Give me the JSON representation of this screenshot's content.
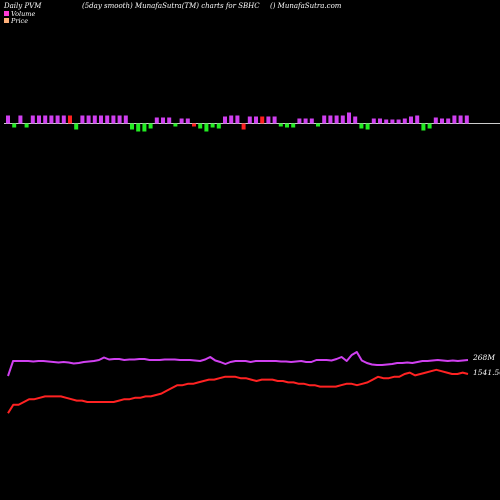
{
  "header": {
    "left": "Daily PVM",
    "center": "(5day smooth) MunafaSutra(TM) charts for SBHC",
    "right": "() MunafaSutra.com"
  },
  "legend": [
    {
      "label": "Volume",
      "color": "#ff3ad6"
    },
    {
      "label": "Price",
      "color": "#ffb07a"
    }
  ],
  "chart_data": {
    "type": "line",
    "title": "(5day smooth) MunafaSutra(TM) charts for SBHC",
    "colors": {
      "volume_line": "#d040f0",
      "price_line": "#ff2222",
      "bar_up": "#d040f0",
      "bar_down": "#22ee22",
      "bar_red": "#ff2020",
      "baseline": "#cccccc"
    },
    "volume_bars": {
      "values": [
        8,
        -4,
        8,
        -4,
        8,
        8,
        8,
        8,
        8,
        8,
        8,
        -6,
        8,
        8,
        8,
        8,
        8,
        8,
        8,
        8,
        -6,
        -8,
        -8,
        -5,
        6,
        6,
        6,
        -3,
        5,
        5,
        -3,
        -5,
        -8,
        -4,
        -5,
        7,
        8,
        8,
        -6,
        7,
        7,
        7,
        7,
        7,
        -3,
        -4,
        -4,
        5,
        5,
        5,
        -3,
        8,
        8,
        8,
        8,
        11,
        7,
        -5,
        -6,
        5,
        5,
        4,
        4,
        4,
        5,
        7,
        8,
        -7,
        -5,
        6,
        5,
        5,
        8,
        8,
        8
      ],
      "signs": [
        "u",
        "g",
        "u",
        "g",
        "u",
        "u",
        "u",
        "u",
        "u",
        "u",
        "r",
        "g",
        "u",
        "u",
        "u",
        "u",
        "u",
        "u",
        "u",
        "u",
        "g",
        "g",
        "g",
        "g",
        "u",
        "u",
        "u",
        "g",
        "u",
        "u",
        "r",
        "g",
        "g",
        "g",
        "g",
        "u",
        "u",
        "u",
        "r",
        "u",
        "u",
        "r",
        "u",
        "u",
        "g",
        "g",
        "g",
        "u",
        "u",
        "u",
        "g",
        "u",
        "u",
        "u",
        "u",
        "u",
        "u",
        "g",
        "g",
        "u",
        "u",
        "u",
        "u",
        "u",
        "u",
        "u",
        "u",
        "g",
        "g",
        "u",
        "u",
        "u",
        "u",
        "u",
        "u"
      ]
    },
    "volume_line": {
      "name": "Volume",
      "end_label": "268M",
      "values": [
        18,
        48,
        48,
        48,
        48,
        47,
        48,
        48,
        47,
        46,
        45,
        46,
        45,
        43,
        44,
        46,
        47,
        48,
        50,
        55,
        51,
        52,
        52,
        50,
        51,
        51,
        52,
        52,
        50,
        50,
        50,
        51,
        51,
        51,
        50,
        50,
        50,
        49,
        48,
        51,
        56,
        49,
        46,
        42,
        46,
        48,
        48,
        48,
        46,
        48,
        48,
        48,
        48,
        48,
        47,
        47,
        46,
        47,
        48,
        46,
        46,
        50,
        50,
        50,
        49,
        52,
        56,
        48,
        60,
        66,
        49,
        44,
        41,
        40,
        40,
        41,
        42,
        44,
        44,
        45,
        44,
        46,
        48,
        48,
        49,
        50,
        49,
        48,
        49,
        48,
        49,
        50
      ]
    },
    "price_line": {
      "name": "Price",
      "end_label": "1541.50",
      "values": [
        12,
        18,
        18,
        20,
        22,
        22,
        23,
        24,
        24,
        24,
        24,
        23,
        22,
        21,
        21,
        20,
        20,
        20,
        20,
        20,
        20,
        21,
        22,
        22,
        23,
        23,
        24,
        24,
        25,
        26,
        28,
        30,
        32,
        32,
        33,
        33,
        34,
        35,
        36,
        36,
        37,
        38,
        38,
        38,
        37,
        37,
        36,
        35,
        36,
        36,
        36,
        35,
        35,
        34,
        34,
        33,
        33,
        32,
        32,
        31,
        31,
        31,
        31,
        32,
        33,
        33,
        32,
        33,
        34,
        36,
        38,
        37,
        37,
        38,
        38,
        40,
        41,
        39,
        40,
        41,
        42,
        43,
        42,
        41,
        40,
        40,
        41,
        40
      ]
    }
  }
}
